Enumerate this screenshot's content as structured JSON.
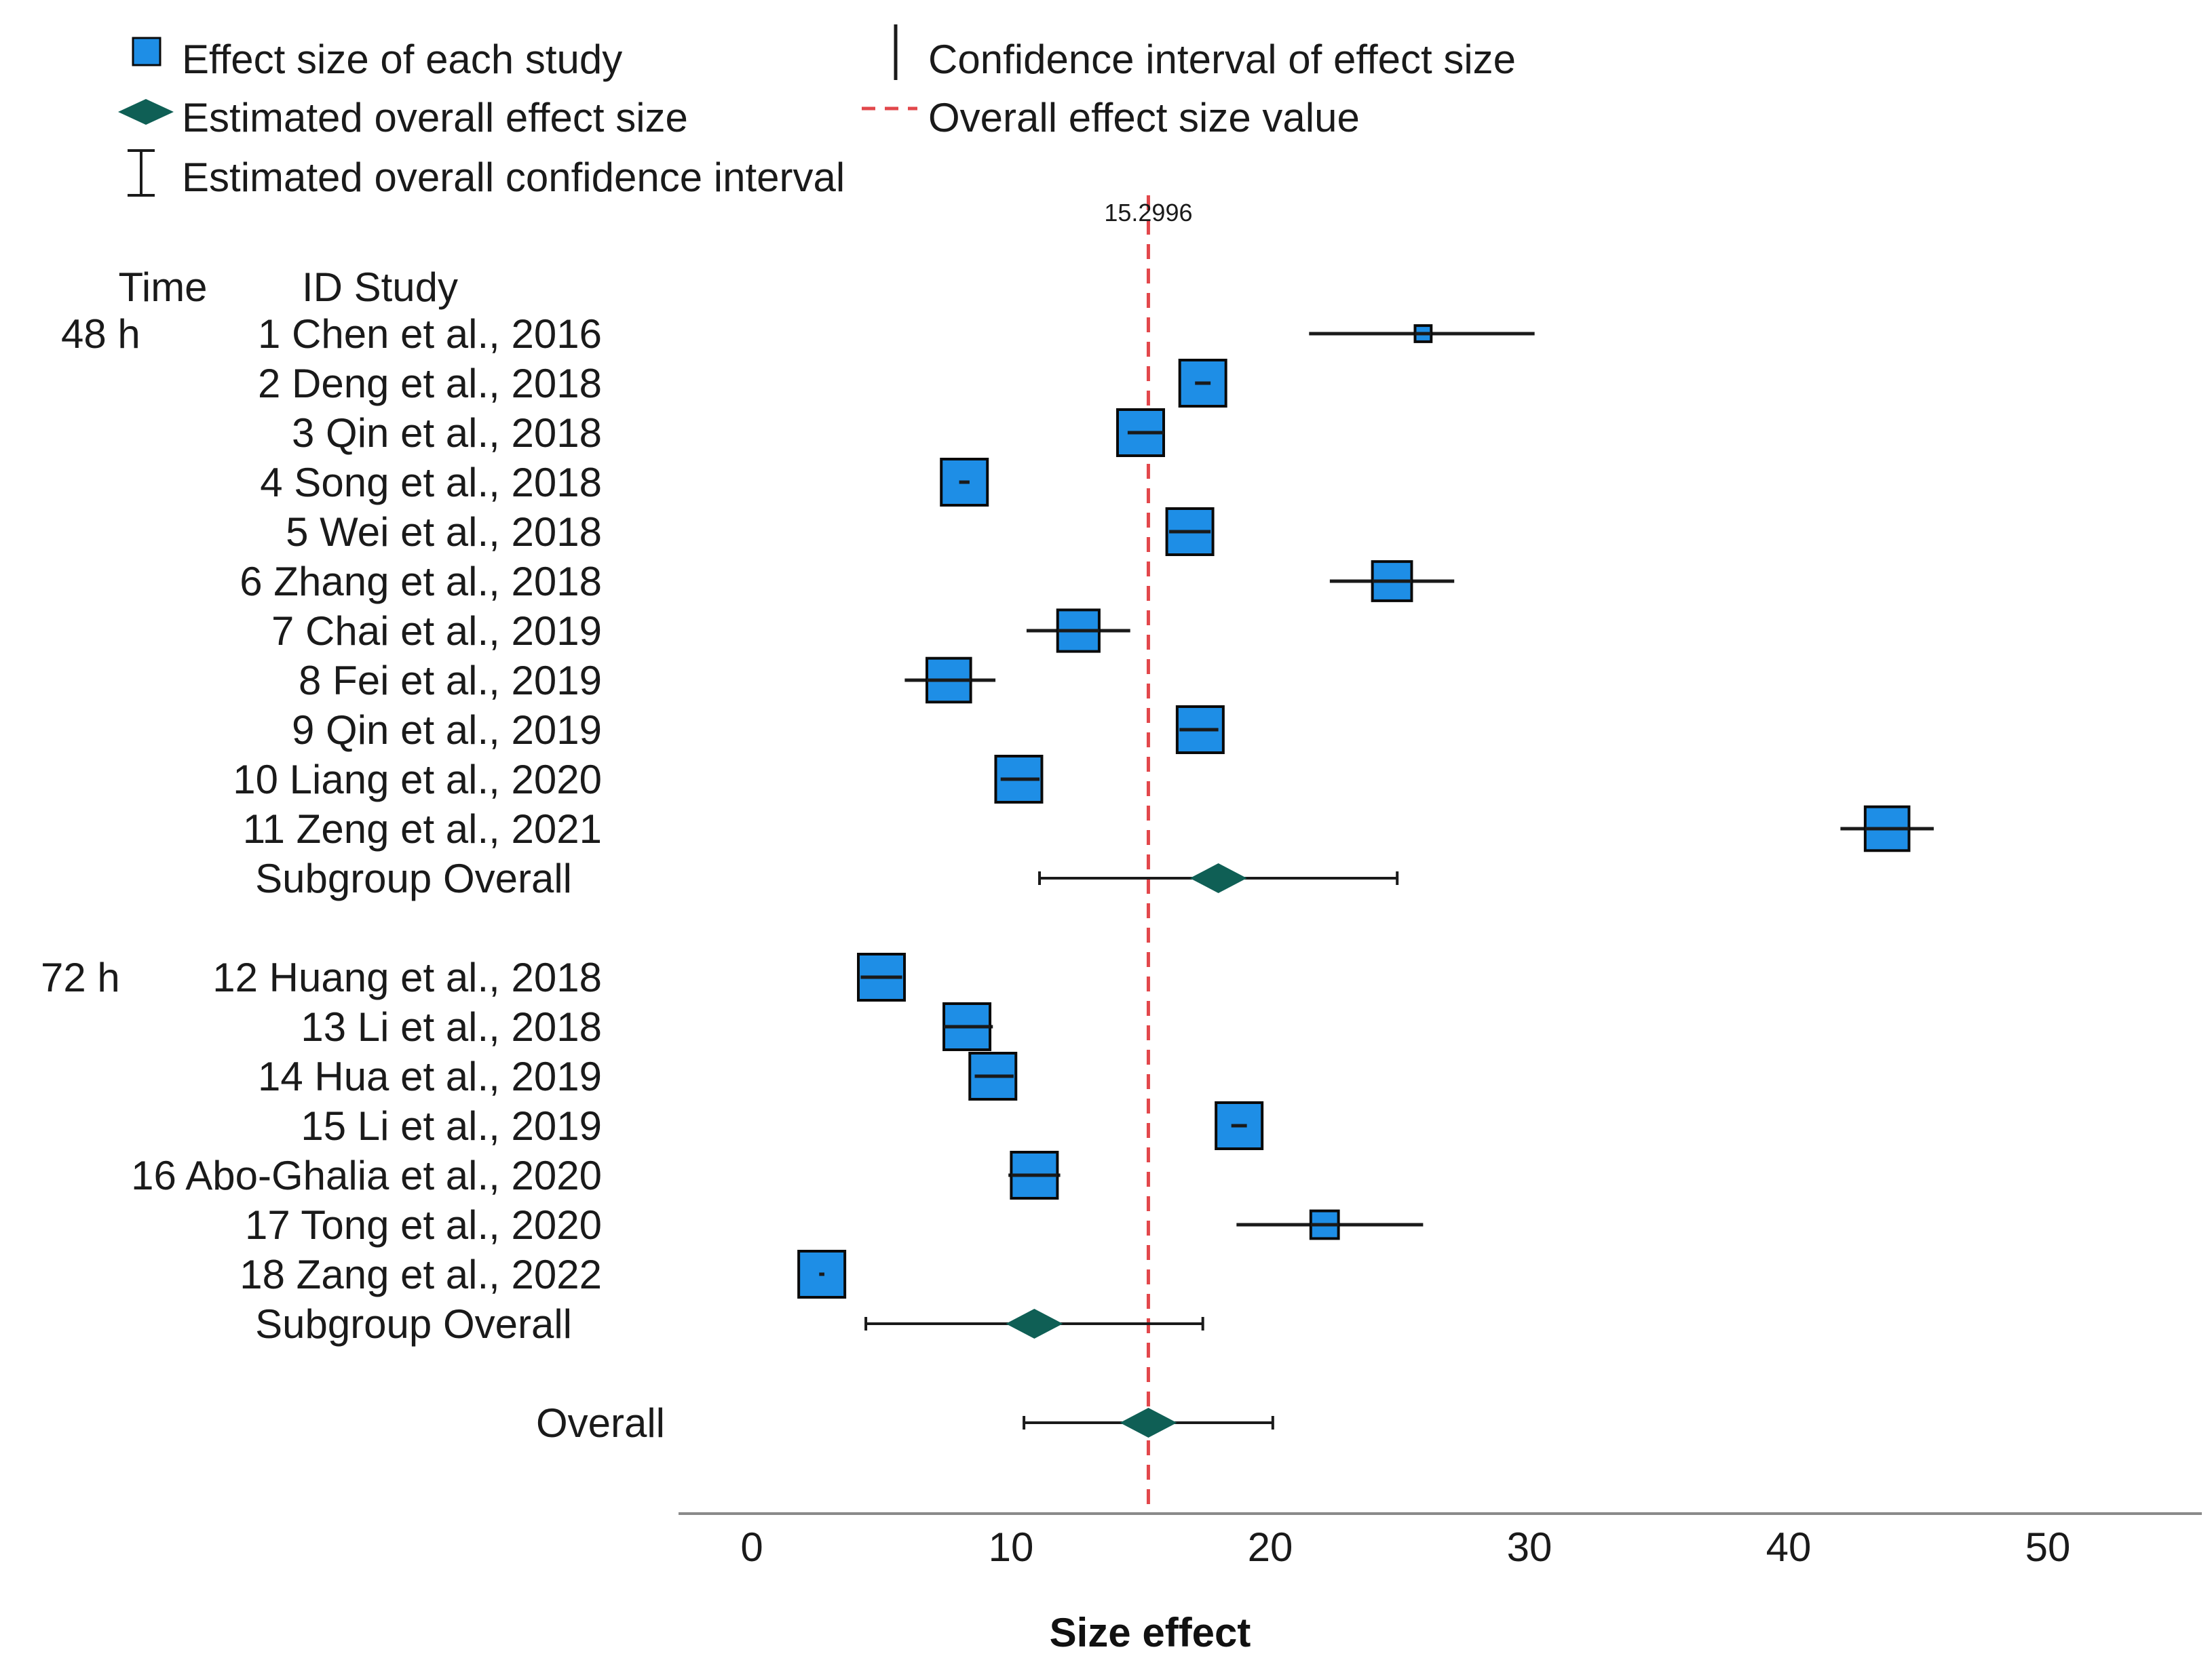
{
  "chart_data": {
    "type": "forest",
    "xlabel": "Size effect",
    "xlim": [
      -3,
      55
    ],
    "xticks": [
      0,
      10,
      20,
      30,
      40,
      50
    ],
    "reference_value": 15.2996,
    "reference_label": "15.2996",
    "column_headers": {
      "time": "Time",
      "study": "ID Study"
    },
    "legend": [
      {
        "key": "study",
        "label": "Effect size of each study"
      },
      {
        "key": "ci",
        "label": "Confidence interval of effect size"
      },
      {
        "key": "diamond",
        "label": "Estimated overall effect size"
      },
      {
        "key": "refline",
        "label": "Overall effect size value"
      },
      {
        "key": "overall_ci",
        "label": "Estimated overall confidence interval"
      }
    ],
    "groups": [
      {
        "time": "48 h",
        "studies": [
          {
            "label": "1  Chen  et al., 2016",
            "effect": 25.9,
            "ci": [
              21.5,
              30.2
            ],
            "weight": 0.35
          },
          {
            "label": "2  Deng  et al., 2018",
            "effect": 17.4,
            "ci": [
              17.1,
              17.7
            ],
            "weight": 1.0
          },
          {
            "label": "3  Qin  et al., 2018",
            "effect": 15.0,
            "ci": [
              14.5,
              15.9
            ],
            "weight": 1.0
          },
          {
            "label": "4  Song  et al., 2018",
            "effect": 8.2,
            "ci": [
              8.0,
              8.4
            ],
            "weight": 1.0
          },
          {
            "label": "5  Wei  et al., 2018",
            "effect": 16.9,
            "ci": [
              16.1,
              17.7
            ],
            "weight": 1.0
          },
          {
            "label": "6  Zhang  et al., 2018",
            "effect": 24.7,
            "ci": [
              22.3,
              27.1
            ],
            "weight": 0.85
          },
          {
            "label": "7  Chai  et al., 2019",
            "effect": 12.6,
            "ci": [
              10.6,
              14.6
            ],
            "weight": 0.9
          },
          {
            "label": "8  Fei  et al., 2019",
            "effect": 7.6,
            "ci": [
              5.9,
              9.4
            ],
            "weight": 0.95
          },
          {
            "label": "9  Qin  et al., 2019",
            "effect": 17.3,
            "ci": [
              16.5,
              18.0
            ],
            "weight": 1.0
          },
          {
            "label": "10 Liang  et al., 2020",
            "effect": 10.3,
            "ci": [
              9.6,
              11.1
            ],
            "weight": 1.0
          },
          {
            "label": "11 Zeng   et al., 2021",
            "effect": 43.8,
            "ci": [
              42.0,
              45.6
            ],
            "weight": 0.95
          }
        ],
        "subgroup": {
          "label": "Subgroup Overall",
          "effect": 18.0,
          "ci": [
            11.1,
            24.9
          ]
        }
      },
      {
        "time": "72 h",
        "studies": [
          {
            "label": "12 Huang  et al., 2018",
            "effect": 5.0,
            "ci": [
              4.2,
              5.8
            ],
            "weight": 1.0
          },
          {
            "label": "13 Li  et al., 2018",
            "effect": 8.3,
            "ci": [
              7.4,
              9.3
            ],
            "weight": 1.0
          },
          {
            "label": "14 Hua  et al., 2019",
            "effect": 9.3,
            "ci": [
              8.6,
              10.1
            ],
            "weight": 1.0
          },
          {
            "label": "15 Li  et al., 2019",
            "effect": 18.8,
            "ci": [
              18.5,
              19.1
            ],
            "weight": 1.0
          },
          {
            "label": "16 Abo-Ghalia et  al., 2020",
            "effect": 10.9,
            "ci": [
              9.9,
              11.9
            ],
            "weight": 1.0
          },
          {
            "label": "17 Tong  et al., 2020",
            "effect": 22.1,
            "ci": [
              18.7,
              25.9
            ],
            "weight": 0.6
          },
          {
            "label": "18 Zang  et al., 2022",
            "effect": 2.7,
            "ci": [
              2.6,
              2.8
            ],
            "weight": 1.0
          }
        ],
        "subgroup": {
          "label": "Subgroup Overall",
          "effect": 10.9,
          "ci": [
            4.4,
            17.4
          ]
        }
      }
    ],
    "overall": {
      "label": "Overall",
      "effect": 15.3,
      "ci": [
        10.5,
        20.1
      ]
    },
    "colors": {
      "marker": "#1e8ee6",
      "marker_edge": "#0a0a0a",
      "diamond": "#0f5f55",
      "refline": "#e2474b",
      "line": "#1a1a1a",
      "axis": "#8a8a8a"
    }
  }
}
